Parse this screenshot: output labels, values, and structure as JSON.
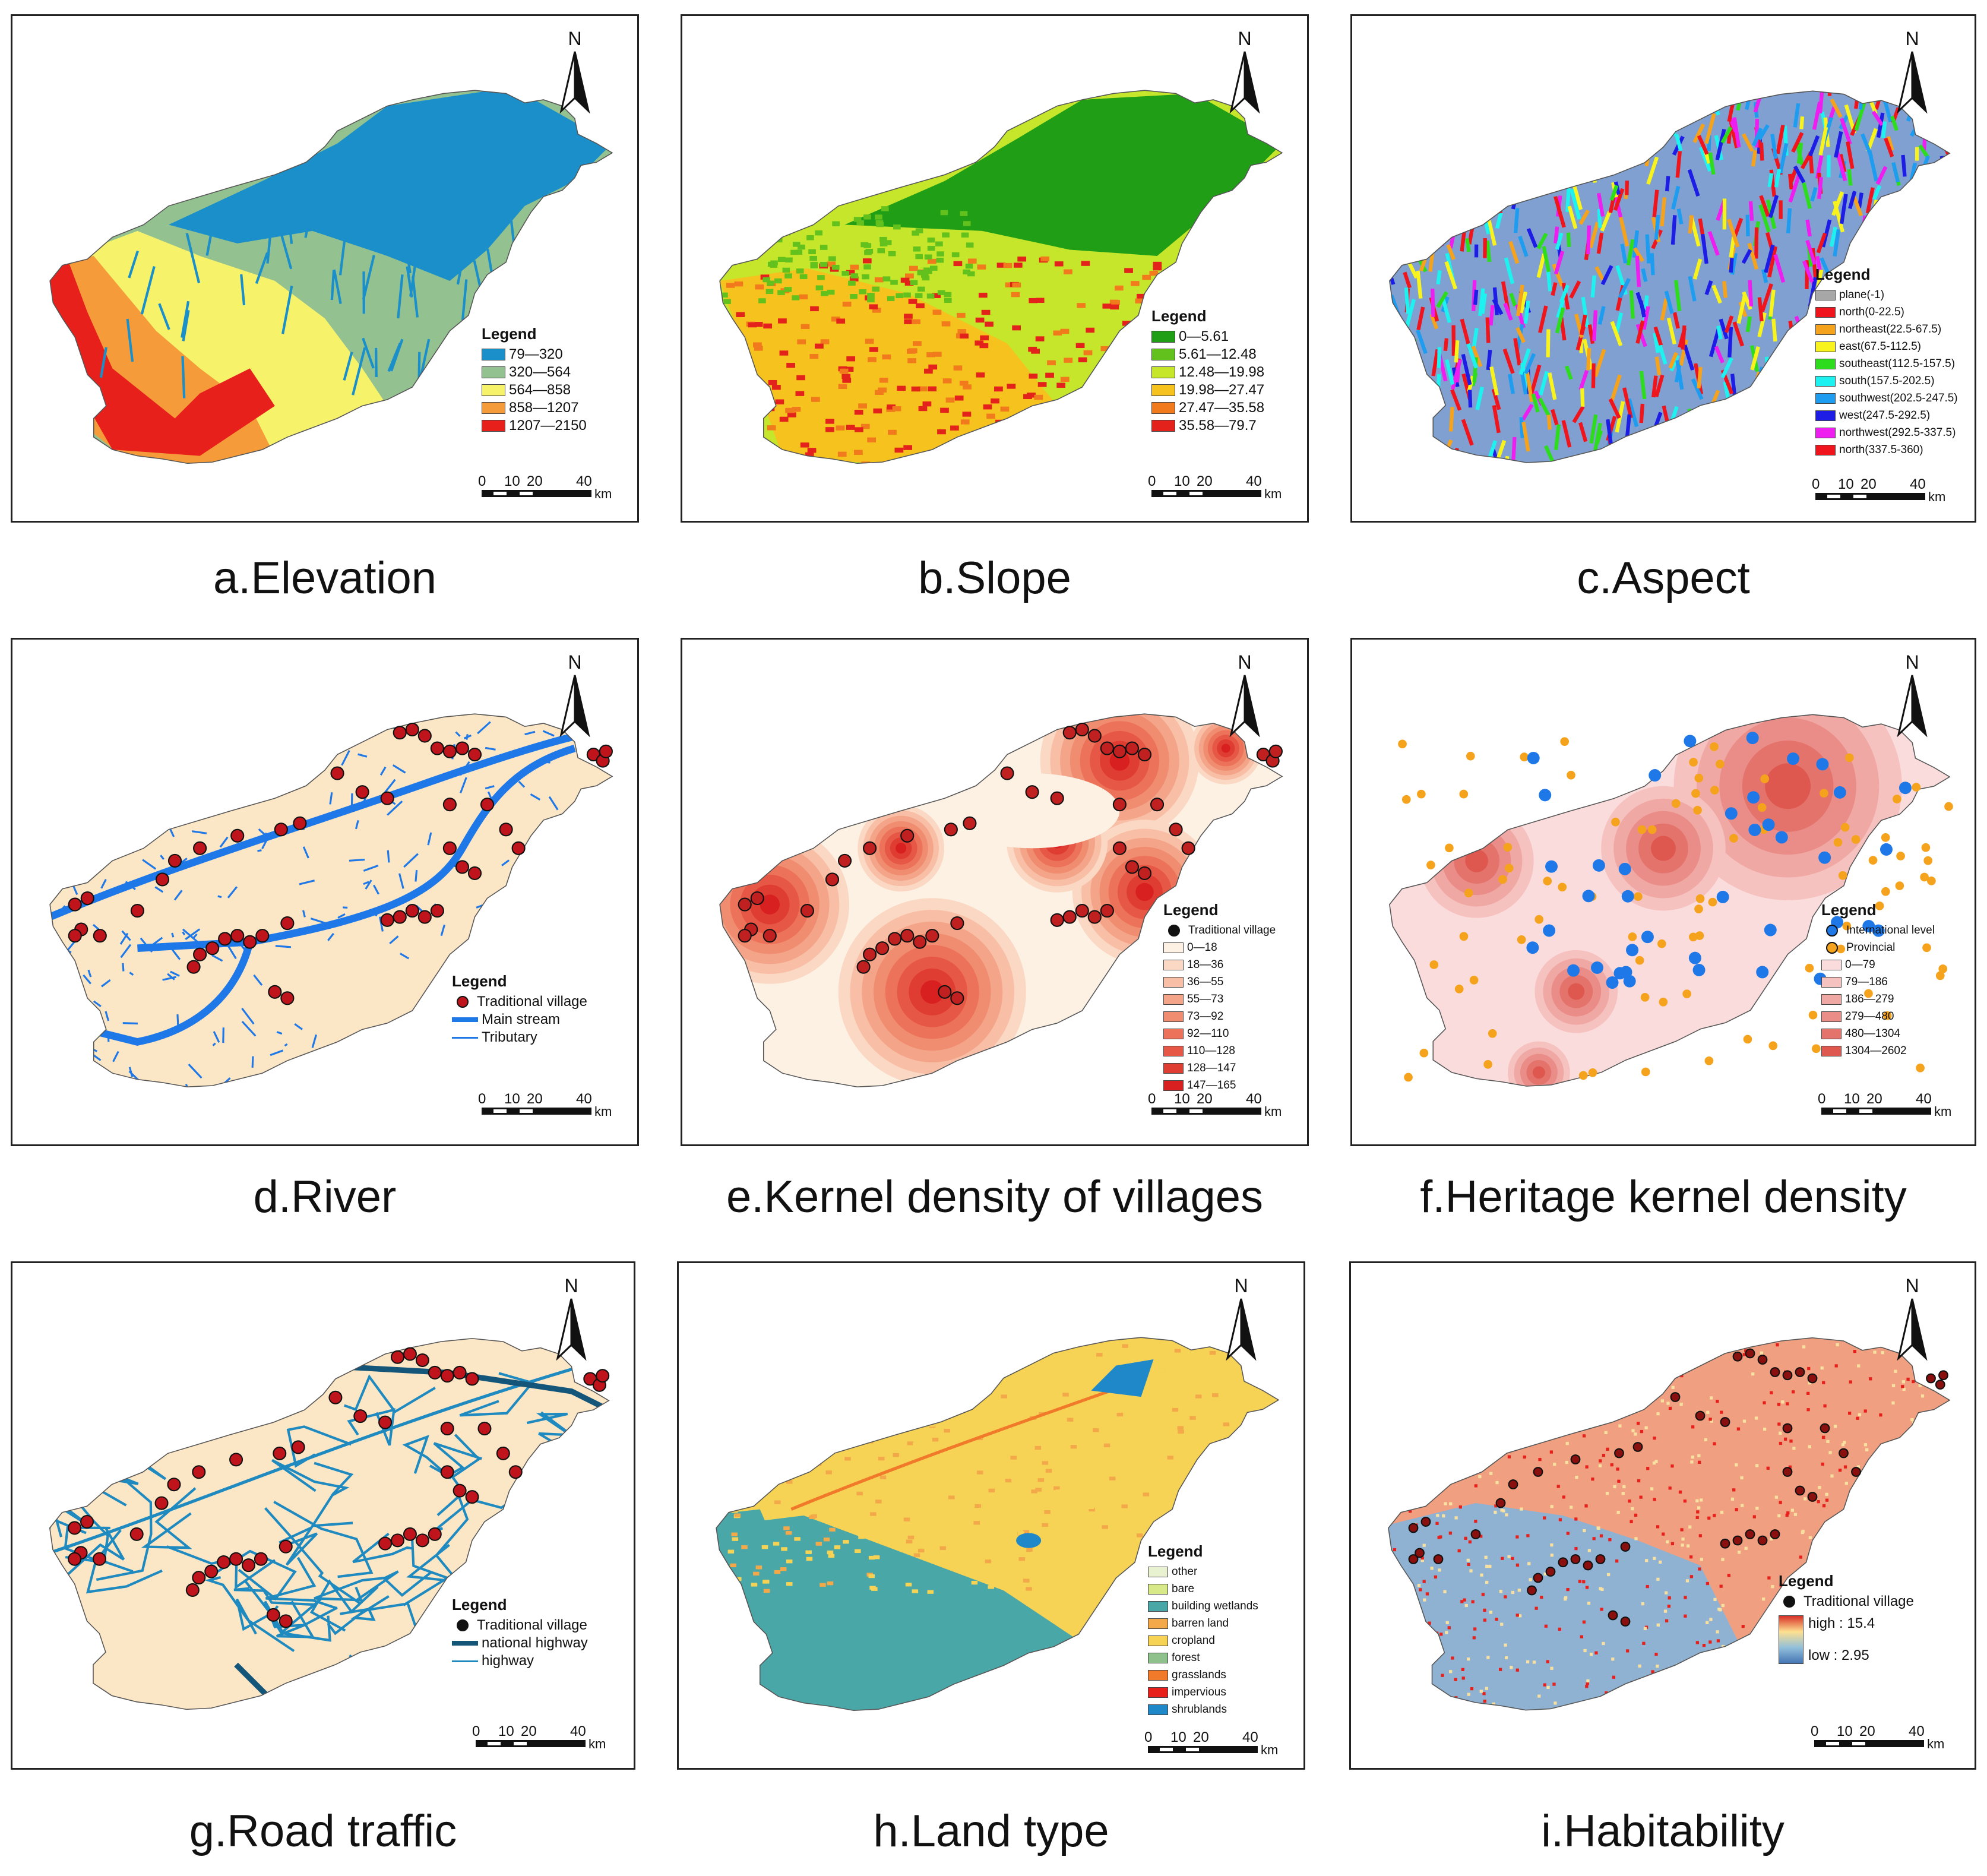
{
  "panels": [
    {
      "id": "a",
      "caption": "a.Elevation",
      "legend_title": "Legend",
      "legend": [
        {
          "label": "79—320",
          "color": "#1a8fc9"
        },
        {
          "label": "320—564",
          "color": "#93c190"
        },
        {
          "label": "564—858",
          "color": "#f6f26a"
        },
        {
          "label": "858—1207",
          "color": "#f59b3a"
        },
        {
          "label": "1207—2150",
          "color": "#e8201c"
        }
      ]
    },
    {
      "id": "b",
      "caption": "b.Slope",
      "legend_title": "Legend",
      "legend": [
        {
          "label": "0—5.61",
          "color": "#1f9e16"
        },
        {
          "label": "5.61—12.48",
          "color": "#62c11c"
        },
        {
          "label": "12.48—19.98",
          "color": "#c5e62a"
        },
        {
          "label": "19.98—27.47",
          "color": "#f6c31e"
        },
        {
          "label": "27.47—35.58",
          "color": "#f07a1c"
        },
        {
          "label": "35.58—79.7",
          "color": "#e3221b"
        }
      ]
    },
    {
      "id": "c",
      "caption": "c.Aspect",
      "legend_title": "Legend",
      "legend": [
        {
          "label": "plane(-1)",
          "color": "#a7a7a7"
        },
        {
          "label": "north(0-22.5)",
          "color": "#f0141c"
        },
        {
          "label": "northeast(22.5-67.5)",
          "color": "#f5a21d"
        },
        {
          "label": "east(67.5-112.5)",
          "color": "#f8f31d"
        },
        {
          "label": "southeast(112.5-157.5)",
          "color": "#2ddc1d"
        },
        {
          "label": "south(157.5-202.5)",
          "color": "#1ef2f0"
        },
        {
          "label": "southwest(202.5-247.5)",
          "color": "#1e9cf0"
        },
        {
          "label": "west(247.5-292.5)",
          "color": "#1d1de6"
        },
        {
          "label": "northwest(292.5-337.5)",
          "color": "#ee1df0"
        },
        {
          "label": "north(337.5-360)",
          "color": "#f0141c"
        }
      ]
    },
    {
      "id": "d",
      "caption": "d.River",
      "legend_title": "Legend",
      "legend": [
        {
          "label": "Traditional village",
          "color": "#c0141c",
          "kind": "dot"
        },
        {
          "label": "Main stream",
          "color": "#1e78e8",
          "kind": "thick"
        },
        {
          "label": "Tributary",
          "color": "#1e78e8",
          "kind": "thin"
        }
      ]
    },
    {
      "id": "e",
      "caption": "e.Kernel density of villages",
      "legend_title": "Legend",
      "legend": [
        {
          "label": "Traditional village",
          "color": "#111",
          "kind": "dot"
        },
        {
          "label": "0—18",
          "color": "#fdf1e4"
        },
        {
          "label": "18—36",
          "color": "#fbd8c3"
        },
        {
          "label": "36—55",
          "color": "#f8bfa6"
        },
        {
          "label": "55—73",
          "color": "#f4a589"
        },
        {
          "label": "73—92",
          "color": "#f08c70"
        },
        {
          "label": "92—110",
          "color": "#ec7259"
        },
        {
          "label": "110—128",
          "color": "#e65845"
        },
        {
          "label": "128—147",
          "color": "#e03d32"
        },
        {
          "label": "147—165",
          "color": "#d82020"
        }
      ]
    },
    {
      "id": "f",
      "caption": "f.Heritage kernel density",
      "legend_title": "Legend",
      "legend": [
        {
          "label": "International level",
          "color": "#1e78e8",
          "kind": "dot"
        },
        {
          "label": "Provincial",
          "color": "#f5a21d",
          "kind": "dot"
        },
        {
          "label": "0—79",
          "color": "#fbdcdc"
        },
        {
          "label": "79—186",
          "color": "#f6c2c0"
        },
        {
          "label": "186—279",
          "color": "#f0a8a4"
        },
        {
          "label": "279—480",
          "color": "#ea8d88"
        },
        {
          "label": "480—1304",
          "color": "#e4736c"
        },
        {
          "label": "1304—2602",
          "color": "#de5850"
        }
      ]
    },
    {
      "id": "g",
      "caption": "g.Road traffic",
      "legend_title": "Legend",
      "legend": [
        {
          "label": "Traditional village",
          "color": "#111",
          "kind": "dot"
        },
        {
          "label": "national highway",
          "color": "#13567a",
          "kind": "thick"
        },
        {
          "label": "highway",
          "color": "#1e8ac0",
          "kind": "thin"
        }
      ]
    },
    {
      "id": "h",
      "caption": "h.Land type",
      "legend_title": "Legend",
      "legend": [
        {
          "label": "other",
          "color": "#e8f2d0"
        },
        {
          "label": "bare",
          "color": "#d8e98a"
        },
        {
          "label": "building wetlands",
          "color": "#4aa7a7"
        },
        {
          "label": "barren land",
          "color": "#f3a94a"
        },
        {
          "label": "cropland",
          "color": "#f6d255"
        },
        {
          "label": "forest",
          "color": "#8fc18c"
        },
        {
          "label": "grasslands",
          "color": "#f07a2a"
        },
        {
          "label": "impervious",
          "color": "#e8201c"
        },
        {
          "label": "shrublands",
          "color": "#1e88c8"
        }
      ]
    },
    {
      "id": "i",
      "caption": "i.Habitability",
      "legend_title": "Legend",
      "legend": [
        {
          "label": "Traditional village",
          "color": "#111",
          "kind": "dot"
        }
      ],
      "ramp": {
        "high": "high : 15.4",
        "low": "low : 2.95"
      }
    }
  ],
  "north_label": "N",
  "scale": {
    "ticks": [
      "0",
      "10",
      "20",
      "40"
    ],
    "unit": "km"
  },
  "colors": {
    "base_fill": "#fbe6c6",
    "elev_low": "#1a8fc9",
    "slope_low": "#1f9e16",
    "land_main": "#4aa7a7",
    "land_crop": "#f6d255",
    "habit_low": "#8fb2d2",
    "habit_high": "#f0a080"
  }
}
